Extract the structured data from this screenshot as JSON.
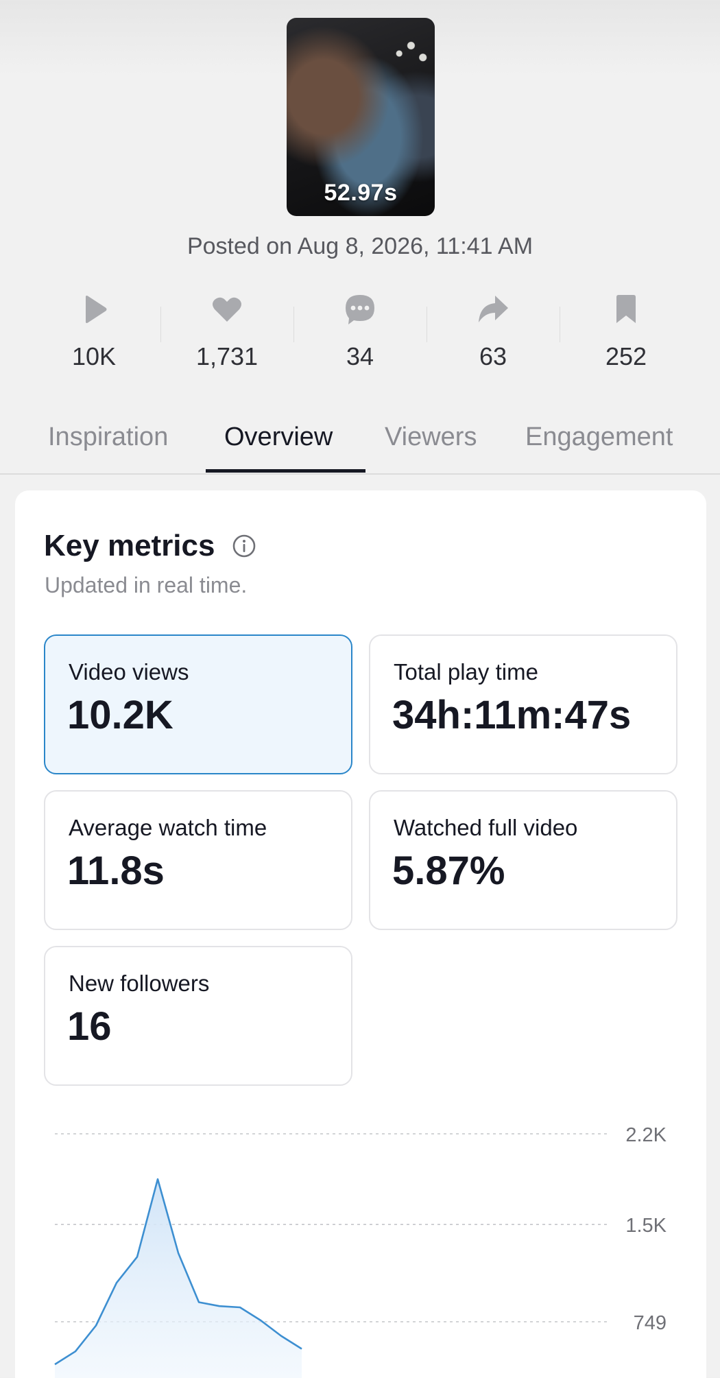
{
  "video": {
    "duration": "52.97s",
    "posted": "Posted on Aug 8, 2026, 11:41 AM"
  },
  "stats": [
    {
      "icon": "play-icon",
      "value": "10K"
    },
    {
      "icon": "heart-icon",
      "value": "1,731"
    },
    {
      "icon": "comment-icon",
      "value": "34"
    },
    {
      "icon": "share-icon",
      "value": "63"
    },
    {
      "icon": "bookmark-icon",
      "value": "252"
    }
  ],
  "tabs": [
    {
      "label": "Inspiration",
      "active": false
    },
    {
      "label": "Overview",
      "active": true
    },
    {
      "label": "Viewers",
      "active": false
    },
    {
      "label": "Engagement",
      "active": false
    }
  ],
  "key_metrics": {
    "title": "Key metrics",
    "subtitle": "Updated in real time.",
    "metrics": [
      {
        "label": "Video views",
        "value": "10.2K",
        "selected": true
      },
      {
        "label": "Total play time",
        "value": "34h:11m:47s",
        "selected": false
      },
      {
        "label": "Average watch time",
        "value": "11.8s",
        "selected": false
      },
      {
        "label": "Watched full video",
        "value": "5.87%",
        "selected": false
      },
      {
        "label": "New followers",
        "value": "16",
        "selected": false
      }
    ]
  },
  "colors": {
    "accent": "#2a86c9",
    "selected_bg": "#eef6fd",
    "line": "#3d8fd1"
  },
  "chart_data": {
    "type": "area",
    "x": [
      0,
      1,
      2,
      3,
      4,
      5,
      6,
      7,
      8,
      9,
      10,
      11,
      12
    ],
    "values": [
      420,
      520,
      720,
      1050,
      1250,
      1850,
      1280,
      900,
      870,
      860,
      760,
      640,
      540
    ],
    "yticks": [
      "2.2K",
      "1.5K",
      "749"
    ],
    "ytick_values": [
      2200,
      1500,
      749
    ],
    "grid": true
  }
}
